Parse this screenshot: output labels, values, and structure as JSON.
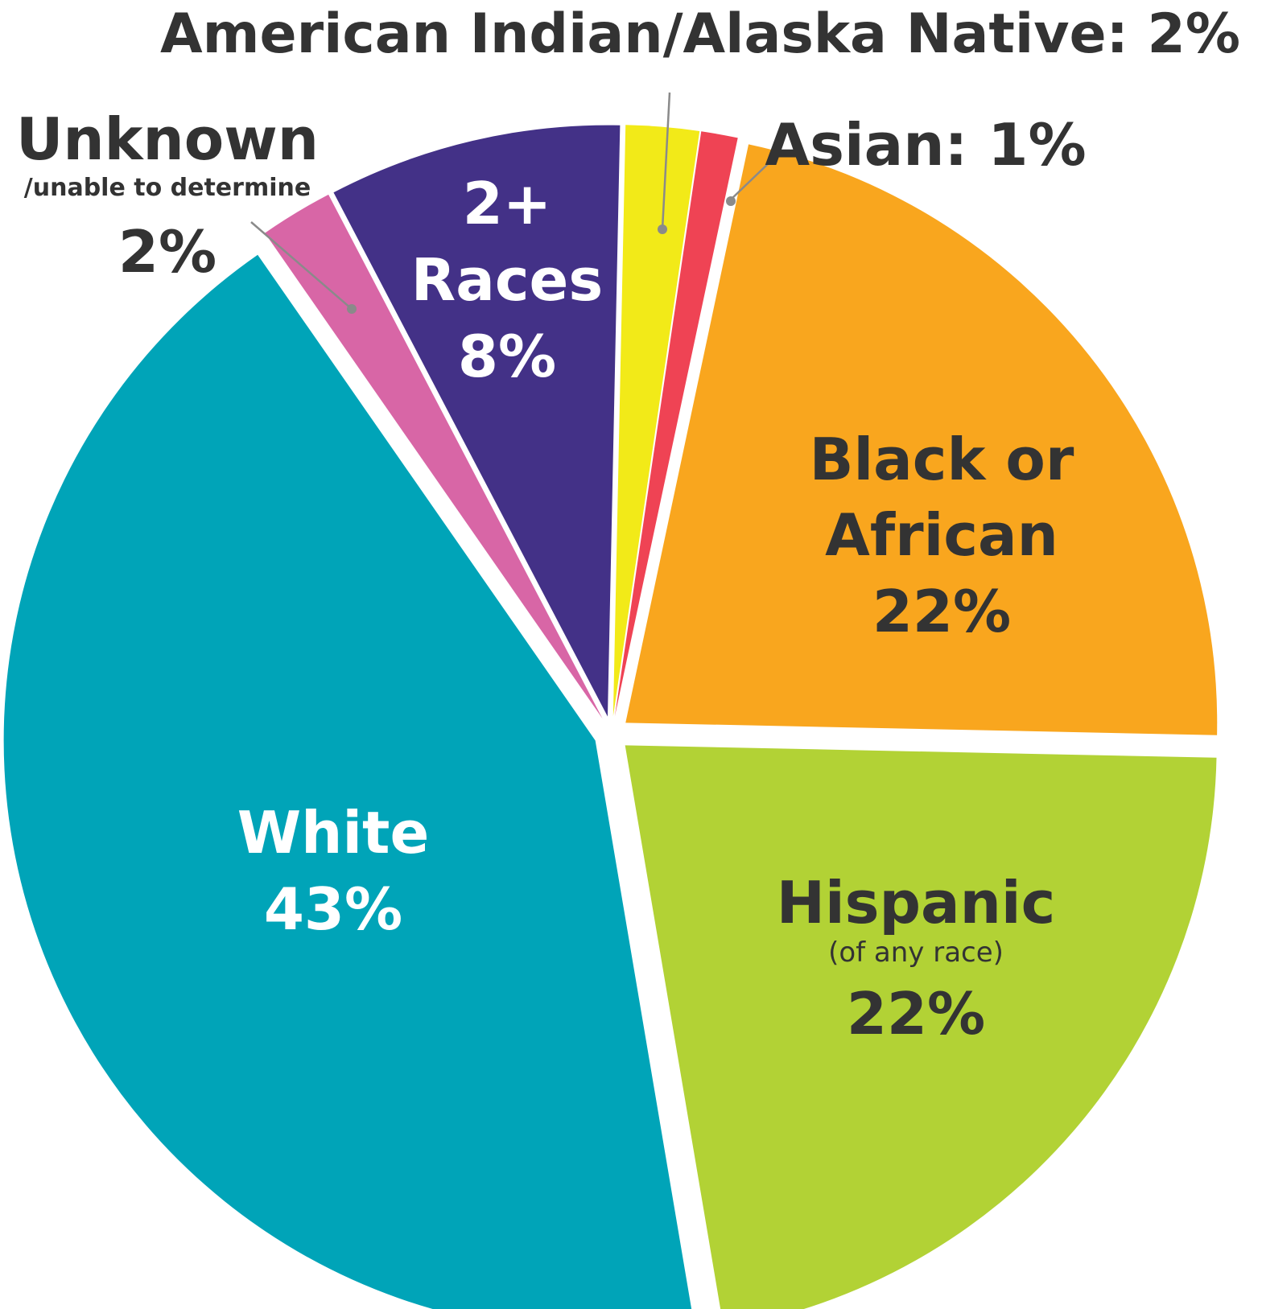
{
  "chart_data": {
    "type": "pie",
    "title": "",
    "slices": [
      {
        "key": "black",
        "label": "Black or African",
        "value": 22,
        "value_text": "22%",
        "color": "#F9A61E"
      },
      {
        "key": "hispanic",
        "label": "Hispanic",
        "sublabel": "(of any race)",
        "value": 22,
        "value_text": "22%",
        "color": "#B2D235"
      },
      {
        "key": "white",
        "label": "White",
        "value": 43,
        "value_text": "43%",
        "color": "#00A4B8"
      },
      {
        "key": "unknown",
        "label": "Unknown",
        "sublabel": "/unable to determine",
        "value": 2,
        "value_text": "2%",
        "color": "#D866A6"
      },
      {
        "key": "two_plus",
        "label": "2+ Races",
        "value": 8,
        "value_text": "8%",
        "color": "#433187"
      },
      {
        "key": "aian",
        "label": "American Indian/Alaska Native",
        "value": 2,
        "value_text": "2%",
        "color": "#F2EA18"
      },
      {
        "key": "asian",
        "label": "Asian",
        "value": 1,
        "value_text": "1%",
        "color": "#EF4354"
      }
    ],
    "labels": {
      "black_line1": "Black or",
      "black_line2": "African",
      "hispanic_line1": "Hispanic",
      "hispanic_line2": "(of any race)",
      "white_line1": "White",
      "unknown_line1": "Unknown",
      "unknown_line2": "/unable to determine",
      "two_plus_line1": "2+",
      "two_plus_line2": "Races",
      "aian_full": "American Indian/Alaska Native: 2%",
      "asian_full": "Asian: 1%"
    }
  }
}
